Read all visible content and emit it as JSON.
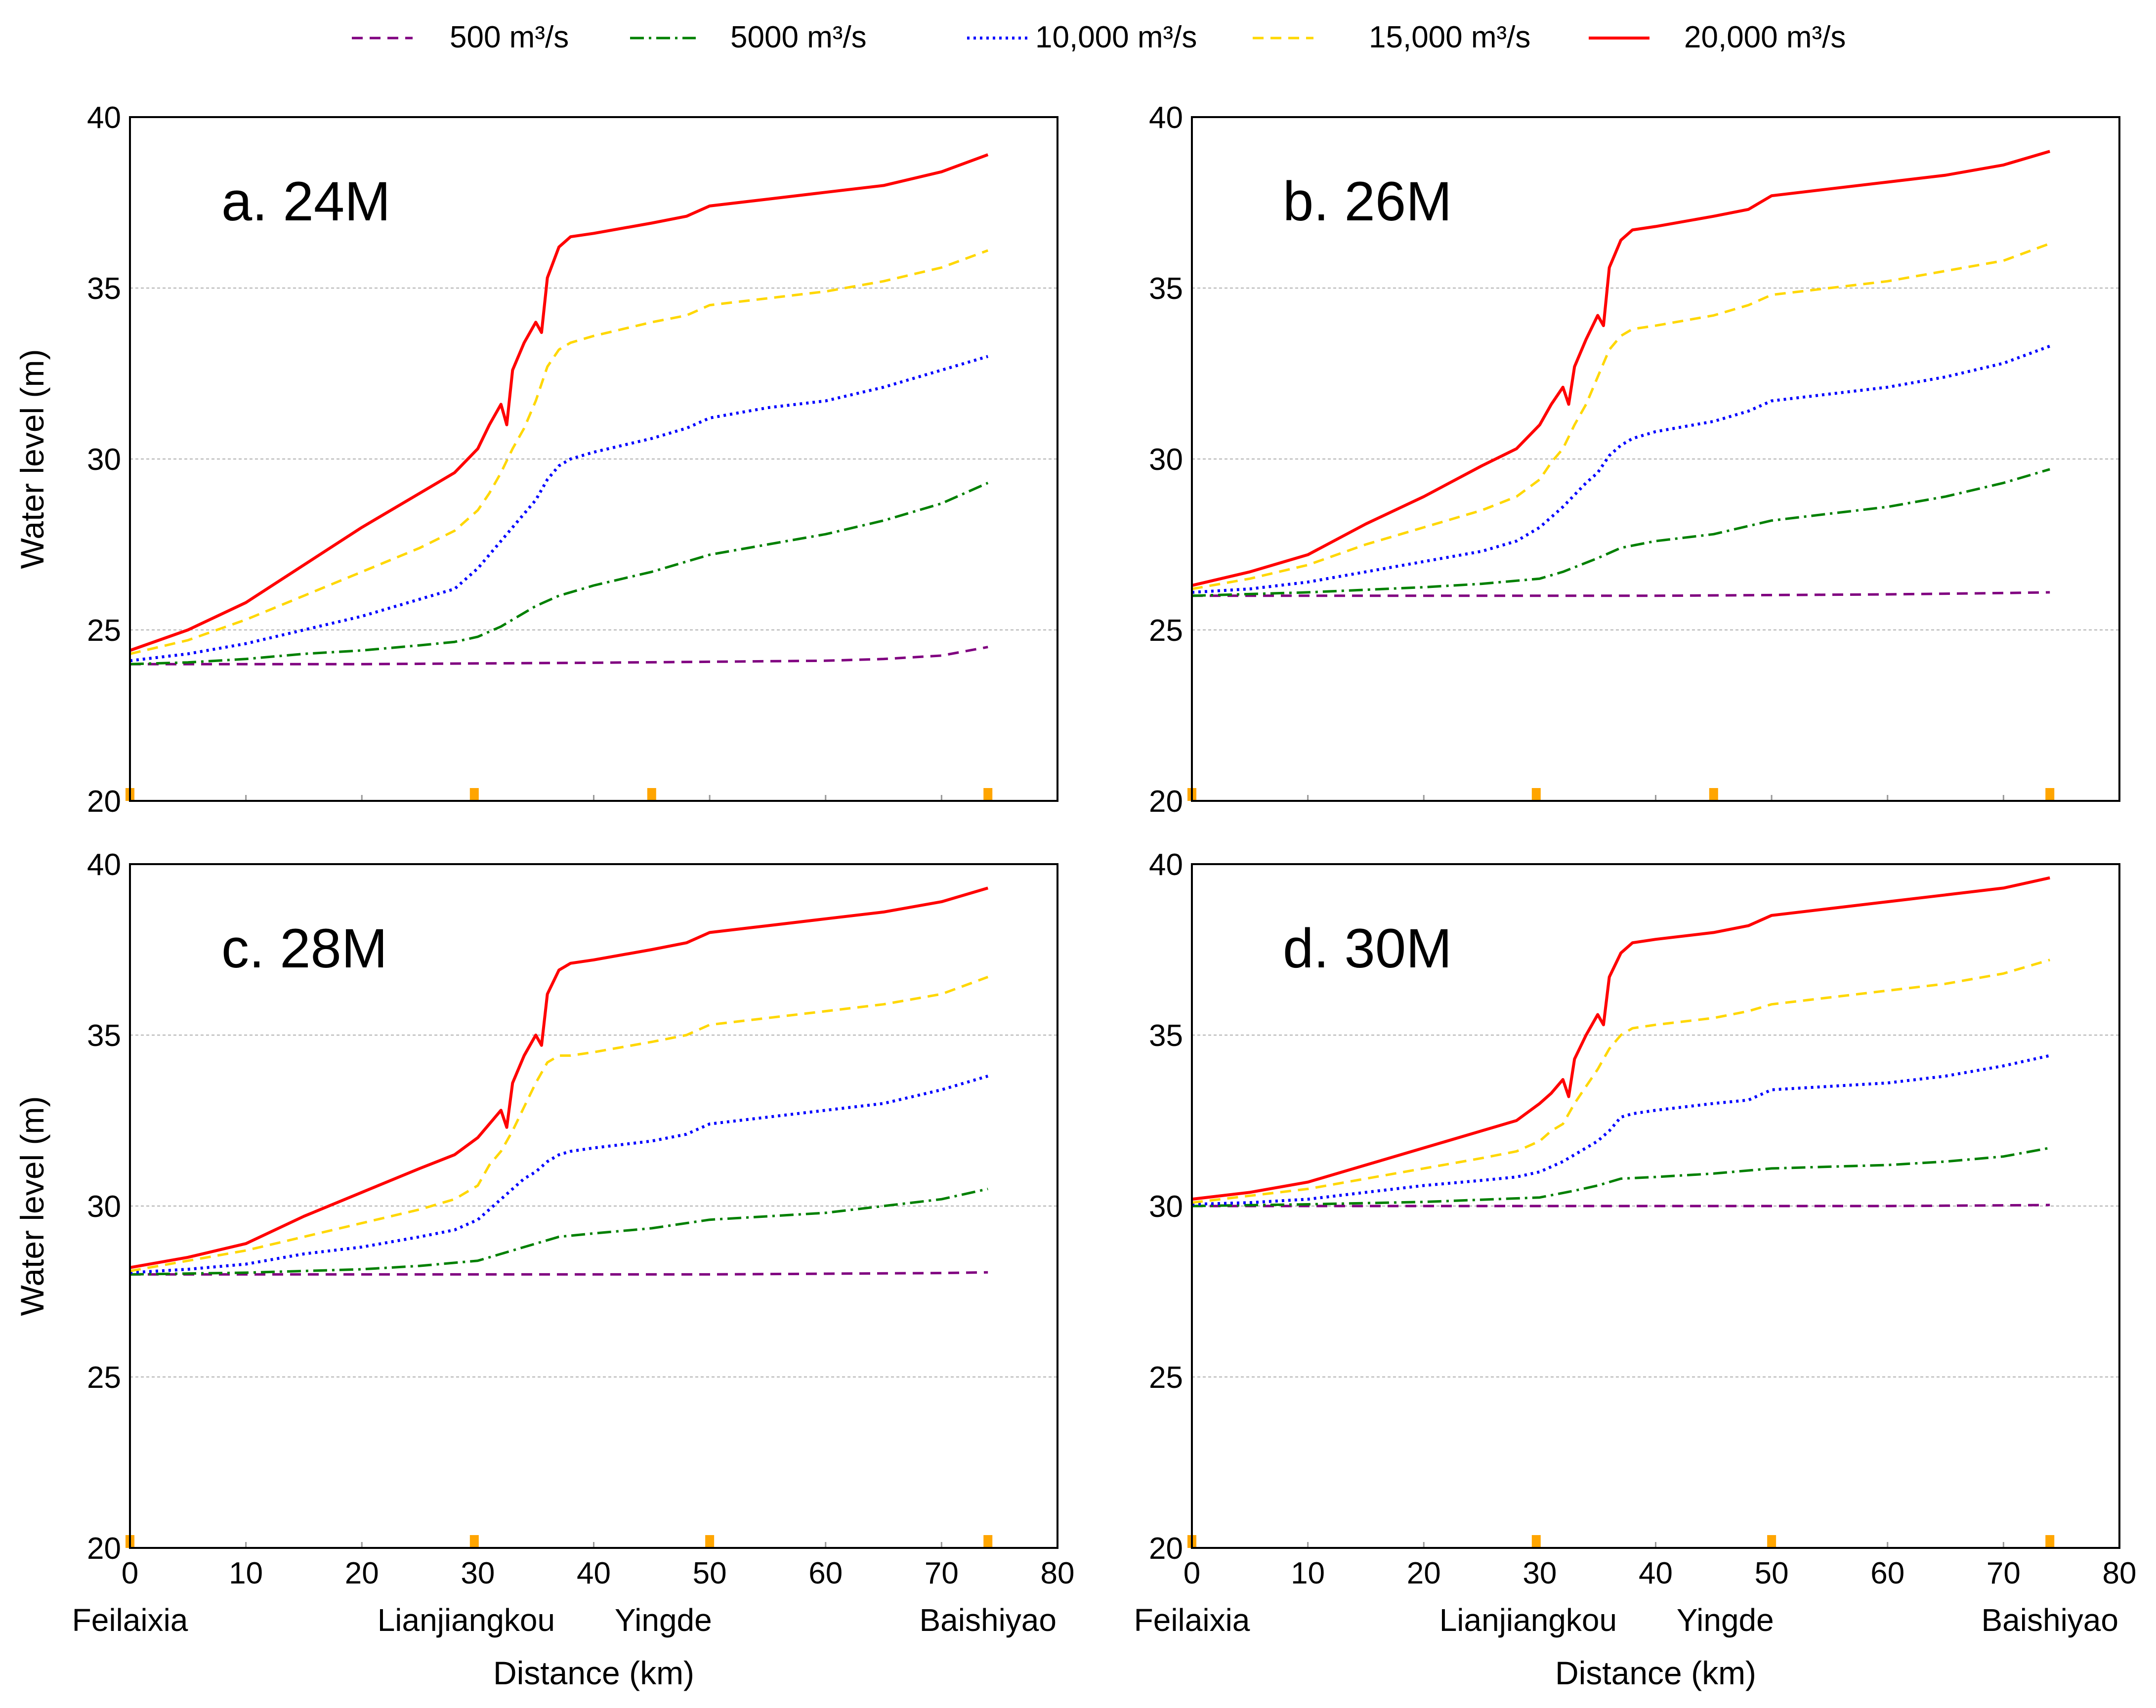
{
  "legend": [
    {
      "label": "500 m³/s",
      "color": "#800080",
      "dash": "22,14",
      "width": 5
    },
    {
      "label": "5000 m³/s",
      "color": "#008000",
      "dash": "28,10,5,10",
      "width": 5
    },
    {
      "label": "10,000 m³/s",
      "color": "#0000ff",
      "dash": "5,8",
      "width": 6
    },
    {
      "label": "15,000 m³/s",
      "color": "#ffd700",
      "dash": "22,14",
      "width": 5
    },
    {
      "label": "20,000 m³/s",
      "color": "#ff0000",
      "dash": "",
      "width": 6
    }
  ],
  "axes": {
    "ylabel": "Water level (m)",
    "xlabel": "Distance (km)",
    "ylim": [
      20,
      40
    ],
    "xlim": [
      0,
      80
    ],
    "yticks": [
      "20",
      "25",
      "30",
      "35",
      "40"
    ],
    "xticks": [
      "0",
      "10",
      "20",
      "30",
      "40",
      "50",
      "60",
      "70",
      "80"
    ],
    "grid_y": [
      25,
      30,
      35
    ],
    "marker_color": "#ffa500"
  },
  "stations": [
    {
      "name": "Feilaixia",
      "km": 0
    },
    {
      "name": "Lianjiangkou",
      "km": 29
    },
    {
      "name": "Yingde",
      "km": 46
    },
    {
      "name": "Baishiyao",
      "km": 74
    }
  ],
  "chart_data": [
    {
      "type": "line",
      "title": "a. 24M",
      "xlabel": "Distance (km)",
      "ylabel": "Water level (m)",
      "xlim": [
        0,
        80
      ],
      "ylim": [
        20,
        40
      ],
      "station_markers_km": [
        0,
        29.7,
        45,
        74
      ],
      "series": [
        {
          "name": "500 m³/s",
          "x": [
            0,
            10,
            20,
            30,
            40,
            50,
            60,
            65,
            70,
            74
          ],
          "y": [
            24.0,
            24.0,
            24.0,
            24.02,
            24.04,
            24.07,
            24.1,
            24.15,
            24.25,
            24.5
          ]
        },
        {
          "name": "5000 m³/s",
          "x": [
            0,
            5,
            10,
            15,
            20,
            25,
            28,
            30,
            32,
            35,
            37,
            40,
            45,
            50,
            55,
            60,
            65,
            70,
            74
          ],
          "y": [
            24.0,
            24.05,
            24.15,
            24.3,
            24.4,
            24.55,
            24.65,
            24.8,
            25.1,
            25.7,
            26.0,
            26.3,
            26.7,
            27.2,
            27.5,
            27.8,
            28.2,
            28.7,
            29.3
          ]
        },
        {
          "name": "10,000 m³/s",
          "x": [
            0,
            5,
            10,
            15,
            20,
            25,
            28,
            30,
            32,
            34,
            35,
            36,
            37,
            38,
            40,
            45,
            48,
            50,
            55,
            60,
            65,
            70,
            74
          ],
          "y": [
            24.1,
            24.3,
            24.6,
            25.0,
            25.4,
            25.9,
            26.2,
            26.8,
            27.6,
            28.4,
            28.8,
            29.4,
            29.8,
            30.0,
            30.2,
            30.6,
            30.9,
            31.2,
            31.5,
            31.7,
            32.1,
            32.6,
            33.0
          ]
        },
        {
          "name": "15,000 m³/s",
          "x": [
            0,
            5,
            10,
            15,
            20,
            25,
            28,
            30,
            31,
            32,
            33,
            34,
            35,
            36,
            37,
            38,
            40,
            45,
            48,
            50,
            55,
            60,
            65,
            70,
            74
          ],
          "y": [
            24.3,
            24.7,
            25.3,
            26.0,
            26.7,
            27.4,
            27.9,
            28.5,
            29.0,
            29.6,
            30.3,
            30.9,
            31.7,
            32.7,
            33.2,
            33.4,
            33.6,
            34.0,
            34.2,
            34.5,
            34.7,
            34.9,
            35.2,
            35.6,
            36.1
          ]
        },
        {
          "name": "20,000 m³/s",
          "x": [
            0,
            5,
            10,
            15,
            20,
            25,
            28,
            30,
            31,
            32,
            32.5,
            33,
            34,
            35,
            35.5,
            36,
            37,
            38,
            40,
            45,
            48,
            50,
            55,
            60,
            65,
            70,
            74
          ],
          "y": [
            24.4,
            25.0,
            25.8,
            26.9,
            28.0,
            29.0,
            29.6,
            30.3,
            31.0,
            31.6,
            31.0,
            32.6,
            33.4,
            34.0,
            33.7,
            35.3,
            36.2,
            36.5,
            36.6,
            36.9,
            37.1,
            37.4,
            37.6,
            37.8,
            38.0,
            38.4,
            38.9
          ]
        }
      ]
    },
    {
      "type": "line",
      "title": "b. 26M",
      "xlabel": "Distance (km)",
      "ylabel": "Water level (m)",
      "xlim": [
        0,
        80
      ],
      "ylim": [
        20,
        40
      ],
      "station_markers_km": [
        0,
        29.7,
        45,
        74
      ],
      "series": [
        {
          "name": "500 m³/s",
          "x": [
            0,
            10,
            20,
            30,
            40,
            50,
            60,
            70,
            74
          ],
          "y": [
            26.0,
            26.0,
            26.0,
            26.0,
            26.0,
            26.02,
            26.04,
            26.08,
            26.1
          ]
        },
        {
          "name": "5000 m³/s",
          "x": [
            0,
            10,
            20,
            25,
            30,
            32,
            35,
            37,
            40,
            45,
            50,
            55,
            60,
            65,
            70,
            74
          ],
          "y": [
            26.0,
            26.1,
            26.25,
            26.35,
            26.5,
            26.7,
            27.1,
            27.4,
            27.6,
            27.8,
            28.2,
            28.4,
            28.6,
            28.9,
            29.3,
            29.7
          ]
        },
        {
          "name": "10,000 m³/s",
          "x": [
            0,
            5,
            10,
            15,
            20,
            25,
            28,
            30,
            32,
            34,
            35,
            36,
            37,
            38,
            40,
            45,
            48,
            50,
            55,
            60,
            65,
            70,
            74
          ],
          "y": [
            26.1,
            26.2,
            26.4,
            26.7,
            27.0,
            27.3,
            27.6,
            28.0,
            28.6,
            29.3,
            29.6,
            30.1,
            30.4,
            30.6,
            30.8,
            31.1,
            31.4,
            31.7,
            31.9,
            32.1,
            32.4,
            32.8,
            33.3
          ]
        },
        {
          "name": "15,000 m³/s",
          "x": [
            0,
            5,
            10,
            15,
            20,
            25,
            28,
            30,
            31,
            32,
            33,
            34,
            35,
            36,
            37,
            38,
            40,
            45,
            48,
            50,
            55,
            60,
            65,
            70,
            74
          ],
          "y": [
            26.2,
            26.5,
            26.9,
            27.5,
            28.0,
            28.5,
            28.9,
            29.4,
            29.9,
            30.3,
            31.0,
            31.6,
            32.4,
            33.2,
            33.6,
            33.8,
            33.9,
            34.2,
            34.5,
            34.8,
            35.0,
            35.2,
            35.5,
            35.8,
            36.3
          ]
        },
        {
          "name": "20,000 m³/s",
          "x": [
            0,
            5,
            10,
            15,
            20,
            25,
            28,
            30,
            31,
            32,
            32.5,
            33,
            34,
            35,
            35.5,
            36,
            37,
            38,
            40,
            45,
            48,
            50,
            55,
            60,
            65,
            70,
            74
          ],
          "y": [
            26.3,
            26.7,
            27.2,
            28.1,
            28.9,
            29.8,
            30.3,
            31.0,
            31.6,
            32.1,
            31.6,
            32.7,
            33.5,
            34.2,
            33.9,
            35.6,
            36.4,
            36.7,
            36.8,
            37.1,
            37.3,
            37.7,
            37.9,
            38.1,
            38.3,
            38.6,
            39.0
          ]
        }
      ]
    },
    {
      "type": "line",
      "title": "c. 28M",
      "xlabel": "Distance (km)",
      "ylabel": "Water level (m)",
      "xlim": [
        0,
        80
      ],
      "ylim": [
        20,
        40
      ],
      "station_markers_km": [
        0,
        29.7,
        50,
        74
      ],
      "series": [
        {
          "name": "500 m³/s",
          "x": [
            0,
            10,
            20,
            30,
            40,
            50,
            60,
            70,
            74
          ],
          "y": [
            28.0,
            28.0,
            28.0,
            28.0,
            28.0,
            28.0,
            28.02,
            28.04,
            28.06
          ]
        },
        {
          "name": "5000 m³/s",
          "x": [
            0,
            10,
            20,
            25,
            30,
            32,
            35,
            37,
            40,
            45,
            50,
            55,
            60,
            65,
            70,
            74
          ],
          "y": [
            28.0,
            28.05,
            28.15,
            28.25,
            28.4,
            28.6,
            28.9,
            29.1,
            29.2,
            29.35,
            29.6,
            29.7,
            29.8,
            30.0,
            30.2,
            30.5
          ]
        },
        {
          "name": "10,000 m³/s",
          "x": [
            0,
            5,
            10,
            15,
            20,
            25,
            28,
            30,
            32,
            34,
            35,
            36,
            37,
            38,
            40,
            45,
            48,
            50,
            55,
            60,
            65,
            70,
            74
          ],
          "y": [
            28.05,
            28.15,
            28.3,
            28.6,
            28.8,
            29.1,
            29.3,
            29.6,
            30.2,
            30.8,
            31.0,
            31.3,
            31.5,
            31.6,
            31.7,
            31.9,
            32.1,
            32.4,
            32.6,
            32.8,
            33.0,
            33.4,
            33.8
          ]
        },
        {
          "name": "15,000 m³/s",
          "x": [
            0,
            5,
            10,
            15,
            20,
            25,
            28,
            30,
            31,
            32,
            33,
            34,
            35,
            36,
            37,
            38,
            40,
            45,
            48,
            50,
            55,
            60,
            65,
            70,
            74
          ],
          "y": [
            28.1,
            28.4,
            28.7,
            29.1,
            29.5,
            29.9,
            30.2,
            30.6,
            31.2,
            31.6,
            32.2,
            32.9,
            33.6,
            34.2,
            34.4,
            34.4,
            34.5,
            34.8,
            35.0,
            35.3,
            35.5,
            35.7,
            35.9,
            36.2,
            36.7
          ]
        },
        {
          "name": "20,000 m³/s",
          "x": [
            0,
            5,
            10,
            15,
            20,
            25,
            28,
            30,
            31,
            32,
            32.5,
            33,
            34,
            35,
            35.5,
            36,
            37,
            38,
            40,
            45,
            48,
            50,
            55,
            60,
            65,
            70,
            74
          ],
          "y": [
            28.2,
            28.5,
            28.9,
            29.7,
            30.4,
            31.1,
            31.5,
            32.0,
            32.4,
            32.8,
            32.3,
            33.6,
            34.4,
            35.0,
            34.7,
            36.2,
            36.9,
            37.1,
            37.2,
            37.5,
            37.7,
            38.0,
            38.2,
            38.4,
            38.6,
            38.9,
            39.3
          ]
        }
      ]
    },
    {
      "type": "line",
      "title": "d. 30M",
      "xlabel": "Distance (km)",
      "ylabel": "Water level (m)",
      "xlim": [
        0,
        80
      ],
      "ylim": [
        20,
        40
      ],
      "station_markers_km": [
        0,
        29.7,
        50,
        74
      ],
      "series": [
        {
          "name": "500 m³/s",
          "x": [
            0,
            10,
            20,
            30,
            40,
            50,
            60,
            70,
            74
          ],
          "y": [
            30.0,
            30.0,
            30.0,
            30.0,
            30.0,
            30.0,
            30.0,
            30.02,
            30.03
          ]
        },
        {
          "name": "5000 m³/s",
          "x": [
            0,
            10,
            20,
            30,
            33,
            35,
            37,
            40,
            45,
            50,
            55,
            60,
            65,
            70,
            74
          ],
          "y": [
            30.0,
            30.05,
            30.12,
            30.25,
            30.45,
            30.6,
            30.8,
            30.85,
            30.95,
            31.1,
            31.15,
            31.2,
            31.3,
            31.45,
            31.7
          ]
        },
        {
          "name": "10,000 m³/s",
          "x": [
            0,
            5,
            10,
            15,
            20,
            25,
            28,
            30,
            32,
            34,
            35,
            36,
            37,
            38,
            40,
            45,
            48,
            50,
            55,
            60,
            65,
            70,
            74
          ],
          "y": [
            30.05,
            30.1,
            30.2,
            30.4,
            30.6,
            30.75,
            30.85,
            31.0,
            31.3,
            31.7,
            31.9,
            32.2,
            32.6,
            32.7,
            32.8,
            33.0,
            33.1,
            33.4,
            33.5,
            33.6,
            33.8,
            34.1,
            34.4
          ]
        },
        {
          "name": "15,000 m³/s",
          "x": [
            0,
            5,
            10,
            15,
            20,
            25,
            28,
            30,
            31,
            32,
            33,
            34,
            35,
            36,
            37,
            38,
            40,
            45,
            48,
            50,
            55,
            60,
            65,
            70,
            74
          ],
          "y": [
            30.1,
            30.3,
            30.5,
            30.8,
            31.1,
            31.4,
            31.6,
            31.9,
            32.2,
            32.4,
            33.0,
            33.5,
            34.0,
            34.6,
            35.0,
            35.2,
            35.3,
            35.5,
            35.7,
            35.9,
            36.1,
            36.3,
            36.5,
            36.8,
            37.2
          ]
        },
        {
          "name": "20,000 m³/s",
          "x": [
            0,
            5,
            10,
            15,
            20,
            25,
            28,
            30,
            31,
            32,
            32.5,
            33,
            34,
            35,
            35.5,
            36,
            37,
            38,
            40,
            45,
            48,
            50,
            55,
            60,
            65,
            70,
            74
          ],
          "y": [
            30.2,
            30.4,
            30.7,
            31.2,
            31.7,
            32.2,
            32.5,
            33.0,
            33.3,
            33.7,
            33.2,
            34.3,
            35.0,
            35.6,
            35.3,
            36.7,
            37.4,
            37.7,
            37.8,
            38.0,
            38.2,
            38.5,
            38.7,
            38.9,
            39.1,
            39.3,
            39.6
          ]
        }
      ]
    }
  ]
}
